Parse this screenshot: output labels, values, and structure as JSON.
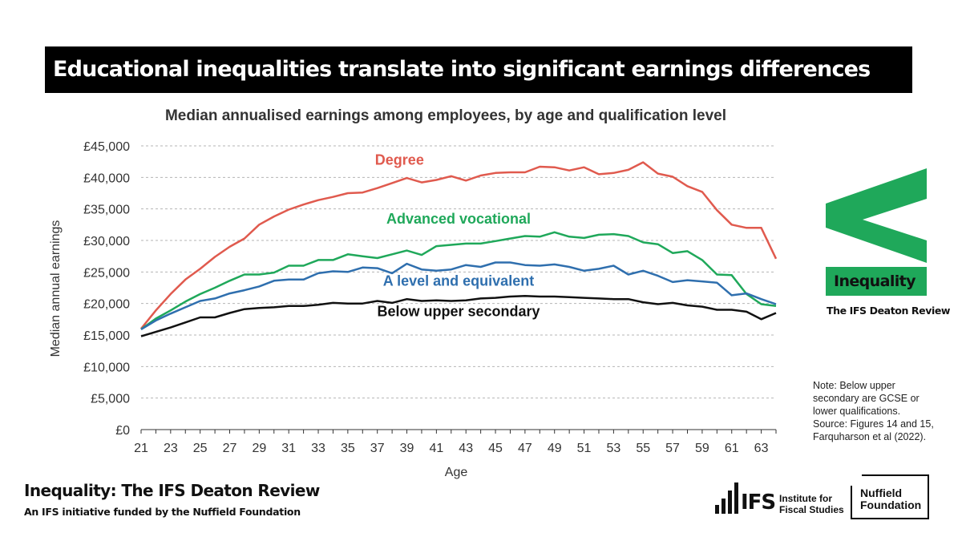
{
  "headline": "Educational inequalities translate into significant earnings differences",
  "brand": {
    "tag": "Inequality",
    "sub": "The IFS Deaton Review",
    "green": "#1fa85a"
  },
  "footer": {
    "title": "Inequality: The IFS Deaton Review",
    "subtitle": "An IFS initiative funded by the Nuffield Foundation"
  },
  "logos": {
    "ifs_letters": "IFS",
    "ifs_name_line1": "Institute for",
    "ifs_name_line2": "Fiscal Studies",
    "nuffield_line1": "Nuffield",
    "nuffield_line2": "Foundation"
  },
  "note": {
    "lines": [
      "Note: Below upper",
      "secondary are GCSE or",
      "lower qualifications.",
      "Source: Figures 14 and 15,",
      "Farquharson et al (2022)."
    ]
  },
  "chart_data": {
    "type": "line",
    "title": "Median annualised earnings among employees, by age and qualification level",
    "xlabel": "Age",
    "ylabel": "Median annual earnings",
    "xlim": [
      21,
      64
    ],
    "ylim": [
      0,
      45000
    ],
    "xticks": [
      21,
      23,
      25,
      27,
      29,
      31,
      33,
      35,
      37,
      39,
      41,
      43,
      45,
      47,
      49,
      51,
      53,
      55,
      57,
      59,
      61,
      63
    ],
    "yticks": [
      0,
      5000,
      10000,
      15000,
      20000,
      25000,
      30000,
      35000,
      40000,
      45000
    ],
    "ytick_labels": [
      "£0",
      "£5,000",
      "£10,000",
      "£15,000",
      "£20,000",
      "£25,000",
      "£30,000",
      "£35,000",
      "£40,000",
      "£45,000"
    ],
    "grid": true,
    "legend": "inline labels",
    "x": [
      21,
      22,
      23,
      24,
      25,
      26,
      27,
      28,
      29,
      30,
      31,
      32,
      33,
      34,
      35,
      36,
      37,
      38,
      39,
      40,
      41,
      42,
      43,
      44,
      45,
      46,
      47,
      48,
      49,
      50,
      51,
      52,
      53,
      54,
      55,
      56,
      57,
      58,
      59,
      60,
      61,
      62,
      63,
      64
    ],
    "series": [
      {
        "name": "Degree",
        "color": "#e05a4e",
        "label_pos": [
          38.5,
          42000
        ],
        "values": [
          16000,
          18900,
          21500,
          23800,
          25500,
          27400,
          29000,
          30300,
          32500,
          33800,
          34900,
          35700,
          36400,
          36900,
          37500,
          37600,
          38300,
          39100,
          39900,
          39200,
          39600,
          40200,
          39500,
          40300,
          40700,
          40800,
          40800,
          41700,
          41600,
          41100,
          41600,
          40500,
          40700,
          41200,
          42400,
          40600,
          40100,
          38600,
          37700,
          34800,
          32500,
          32000,
          32000,
          27100
        ]
      },
      {
        "name": "Advanced vocational",
        "color": "#1fa85a",
        "label_pos": [
          42.5,
          32700
        ],
        "values": [
          15900,
          17600,
          18900,
          20300,
          21500,
          22500,
          23600,
          24600,
          24600,
          24900,
          26000,
          26000,
          26900,
          26900,
          27800,
          27500,
          27200,
          27800,
          28400,
          27700,
          29100,
          29300,
          29500,
          29500,
          29900,
          30300,
          30700,
          30600,
          31300,
          30600,
          30400,
          30900,
          31000,
          30700,
          29700,
          29400,
          28000,
          28300,
          26900,
          24600,
          24500,
          21500,
          19900,
          19600
        ]
      },
      {
        "name": "A level and equivalent",
        "color": "#2f6fae",
        "label_pos": [
          42.5,
          22800
        ],
        "values": [
          15900,
          17300,
          18400,
          19400,
          20400,
          20800,
          21600,
          22100,
          22700,
          23600,
          23800,
          23800,
          24800,
          25100,
          25000,
          25700,
          25600,
          24800,
          26300,
          25400,
          25200,
          25400,
          26100,
          25800,
          26500,
          26500,
          26100,
          26000,
          26200,
          25800,
          25200,
          25500,
          26000,
          24600,
          25200,
          24400,
          23400,
          23700,
          23500,
          23300,
          21300,
          21600,
          20700,
          19900
        ]
      },
      {
        "name": "Below upper secondary",
        "color": "#111111",
        "label_pos": [
          42.5,
          18000
        ],
        "values": [
          14800,
          15500,
          16200,
          17000,
          17800,
          17800,
          18500,
          19100,
          19300,
          19400,
          19600,
          19600,
          19800,
          20100,
          20000,
          20000,
          20400,
          20100,
          20700,
          20400,
          20500,
          20400,
          20500,
          20800,
          20900,
          21100,
          21200,
          21100,
          21100,
          21000,
          20900,
          20800,
          20700,
          20700,
          20200,
          19900,
          20100,
          19700,
          19500,
          19000,
          19000,
          18700,
          17500,
          18500
        ]
      }
    ]
  }
}
